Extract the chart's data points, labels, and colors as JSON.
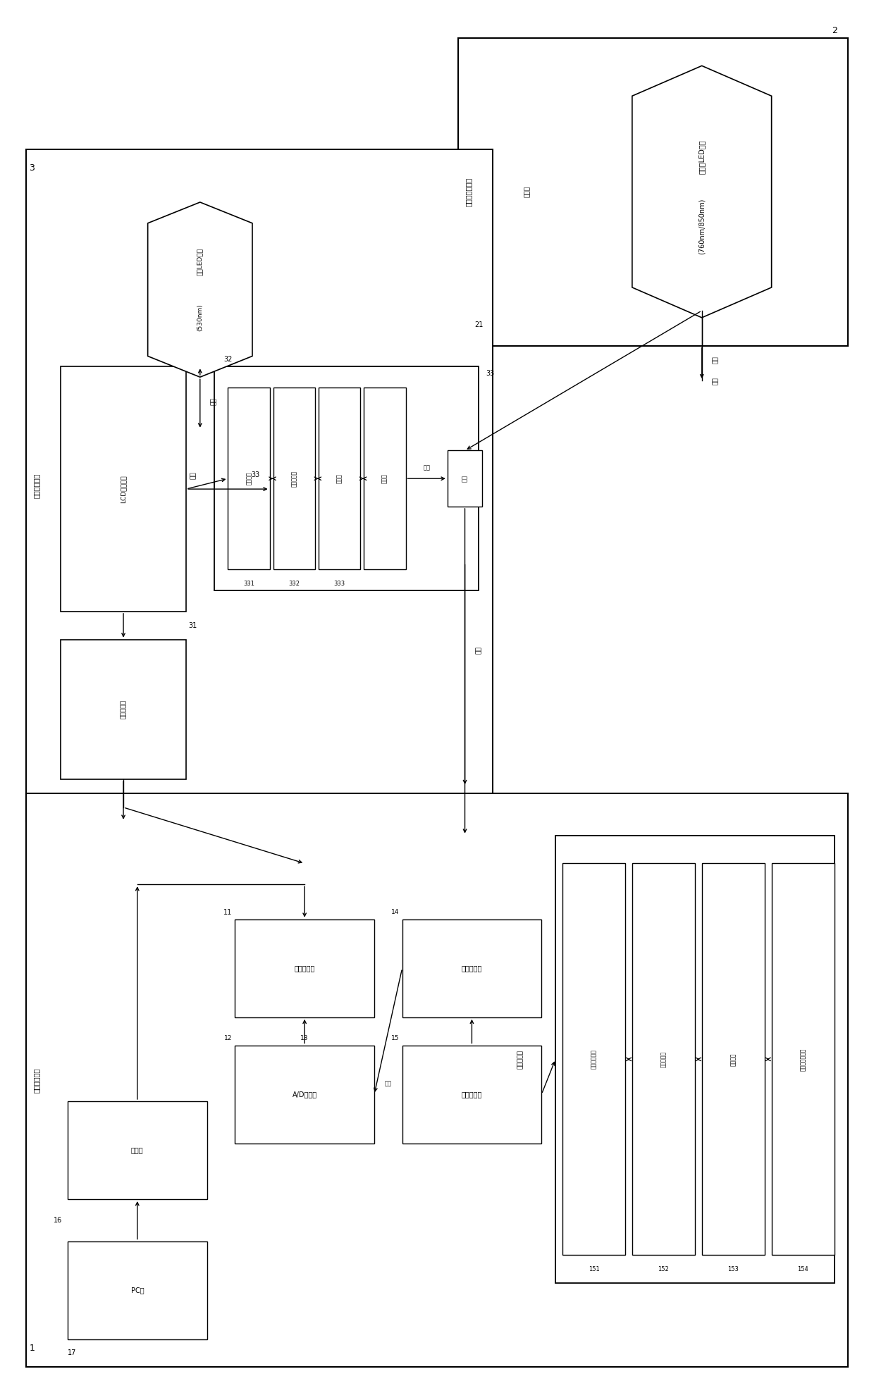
{
  "bg_color": "#ffffff",
  "line_color": "#000000",
  "fig_width": 12.4,
  "fig_height": 19.87,
  "labels": {
    "group2": "近红外发射装置",
    "group2_num": "2",
    "group2_sub_num": "21",
    "hex2_line1": "近红外LED模组",
    "hex2_line2": "(760nm/850nm)",
    "hex2_inner": "合光片",
    "emit2": "发射",
    "group3_num": "3",
    "group3_side": "参数设置模块",
    "hex3_line1": "可视LED模组",
    "hex3_line2": "(530nm)",
    "emit3": "发射",
    "lcd_label": "LCD投影模块",
    "lcd_num": "31",
    "num32": "32",
    "num33": "33",
    "ctrl_label": "图像控制器",
    "emit_lcd": "发射",
    "recv_33": "接收",
    "recv2": "接收",
    "emit_right": "发射",
    "box331": "激光模块",
    "box332": "液光滤波器",
    "box333": "衰光镜",
    "box334": "偏振片",
    "id331": "331",
    "id332": "332",
    "id333": "333",
    "group1_num": "1",
    "group1_side": "数据处理装置",
    "num11": "11",
    "num12": "12",
    "num13": "13",
    "num14": "14",
    "num15": "15",
    "num16": "16",
    "num17": "17",
    "box11": "数字处理器",
    "box12": "A/D转换器",
    "box13": "信号放大器",
    "box14": "光电传感器",
    "box15": "储存器",
    "boxpc": "PC卡",
    "subbox_label": "近红外探头",
    "sub151": "镜头保护玻璃",
    "sub152": "近红外滤镜",
    "sub153": "棱镜组件",
    "sub154": "光学低通滤波器",
    "id151": "151",
    "id152": "152",
    "id153": "153",
    "id154": "154"
  }
}
